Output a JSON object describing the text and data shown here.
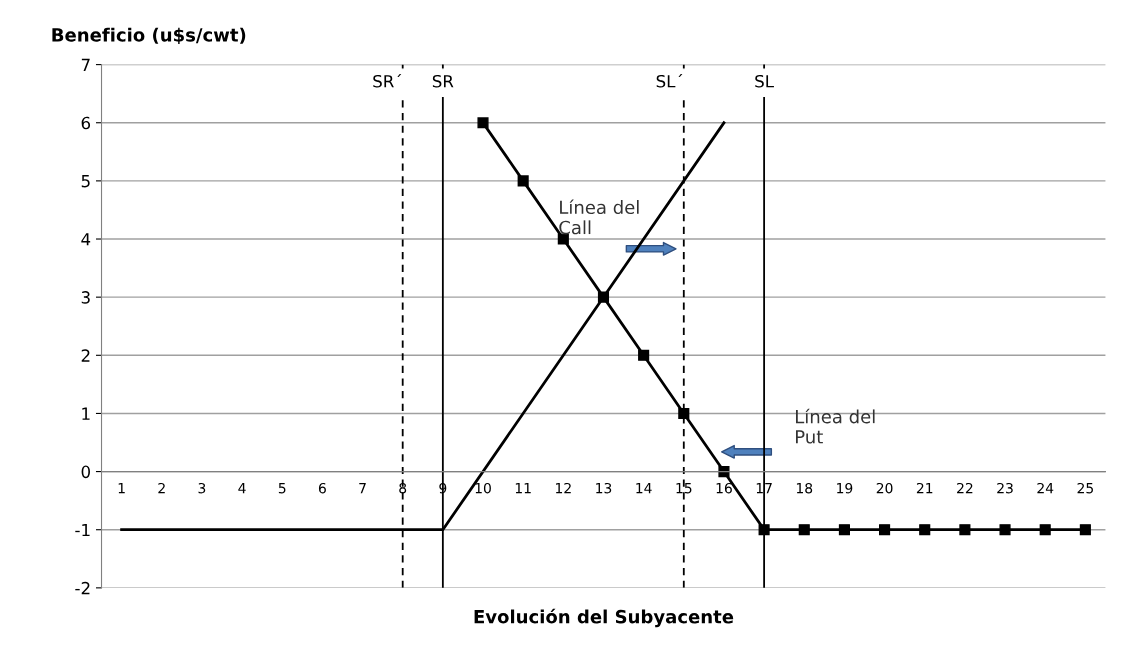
{
  "chart_data": {
    "type": "line",
    "xlabel": "Evolución del Subyacente",
    "ylabel": "Beneficio (u$s/cwt)",
    "xlim": [
      0.5,
      25.5
    ],
    "xticks": [
      1,
      2,
      3,
      4,
      5,
      6,
      7,
      8,
      9,
      10,
      11,
      12,
      13,
      14,
      15,
      16,
      17,
      18,
      19,
      20,
      21,
      22,
      23,
      24,
      25
    ],
    "ylim": [
      -2,
      7
    ],
    "yticks": [
      -2,
      -1,
      0,
      1,
      2,
      3,
      4,
      5,
      6,
      7
    ],
    "grid": "y",
    "legend": false,
    "series": [
      {
        "color": "#000000",
        "marker": "none",
        "x": [
          1,
          9,
          16
        ],
        "values": [
          -1,
          -1,
          6
        ]
      },
      {
        "color": "#000000",
        "marker": "square",
        "x": [
          10,
          11,
          12,
          13,
          14,
          15,
          16,
          17,
          18,
          19,
          20,
          21,
          22,
          23,
          24,
          25
        ],
        "values": [
          6,
          5,
          4,
          3,
          2,
          1,
          0,
          -1,
          -1,
          -1,
          -1,
          -1,
          -1,
          -1,
          -1,
          -1
        ]
      }
    ],
    "ref_lines": [
      {
        "axis": "x",
        "value": 8,
        "label": "SR´",
        "line_style": "dashed",
        "color": "#000000"
      },
      {
        "axis": "x",
        "value": 9,
        "label": "SR",
        "line_style": "solid",
        "color": "#000000"
      },
      {
        "axis": "x",
        "value": 15,
        "label": "SL´",
        "line_style": "dashed",
        "color": "#000000"
      },
      {
        "axis": "x",
        "value": 17,
        "label": "SL",
        "line_style": "solid",
        "color": "#000000"
      }
    ],
    "annotations": [
      "Línea del\nCall",
      "Línea del\nPut"
    ]
  }
}
